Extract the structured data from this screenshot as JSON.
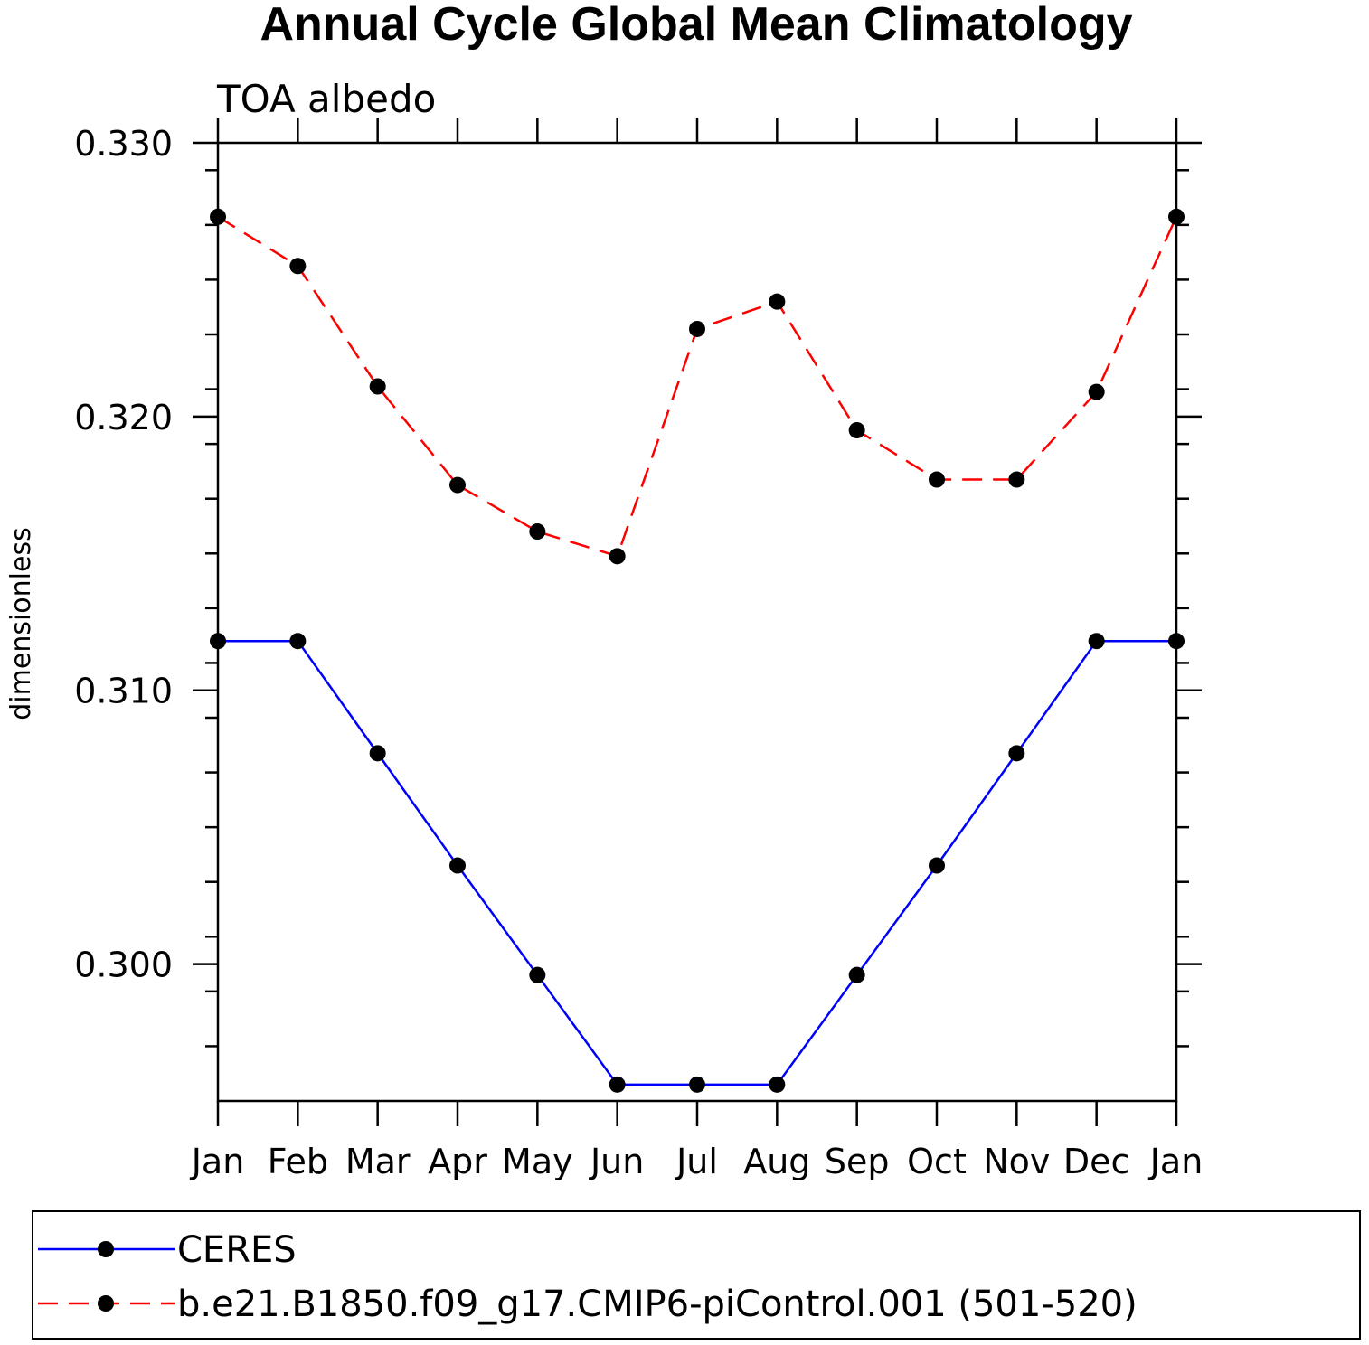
{
  "chart_data": {
    "type": "line",
    "title": "Annual Cycle Global Mean Climatology",
    "subtitle": "TOA albedo",
    "xlabel": "",
    "ylabel": "dimensionless",
    "categories": [
      "Jan",
      "Feb",
      "Mar",
      "Apr",
      "May",
      "Jun",
      "Jul",
      "Aug",
      "Sep",
      "Oct",
      "Nov",
      "Dec",
      "Jan"
    ],
    "ylim": [
      0.295,
      0.33
    ],
    "yticks": [
      0.3,
      0.31,
      0.32,
      0.33
    ],
    "ytick_labels": [
      "0.300",
      "0.310",
      "0.320",
      "0.330"
    ],
    "yminor_step": 0.002,
    "grid": false,
    "legend_position": "bottom",
    "series": [
      {
        "name": "CERES",
        "color": "#0000ff",
        "style": "solid",
        "marker": "circle",
        "values": [
          0.3118,
          0.3118,
          0.3077,
          0.3036,
          0.2996,
          0.2956,
          0.2956,
          0.2956,
          0.2996,
          0.3036,
          0.3077,
          0.3118,
          0.3118
        ]
      },
      {
        "name": "b.e21.B1850.f09_g17.CMIP6-piControl.001 (501-520)",
        "color": "#ff0000",
        "style": "dashed",
        "marker": "circle",
        "values": [
          0.3273,
          0.3255,
          0.3211,
          0.3175,
          0.3158,
          0.3149,
          0.3232,
          0.3242,
          0.3195,
          0.3177,
          0.3177,
          0.3209,
          0.3273
        ]
      }
    ]
  }
}
